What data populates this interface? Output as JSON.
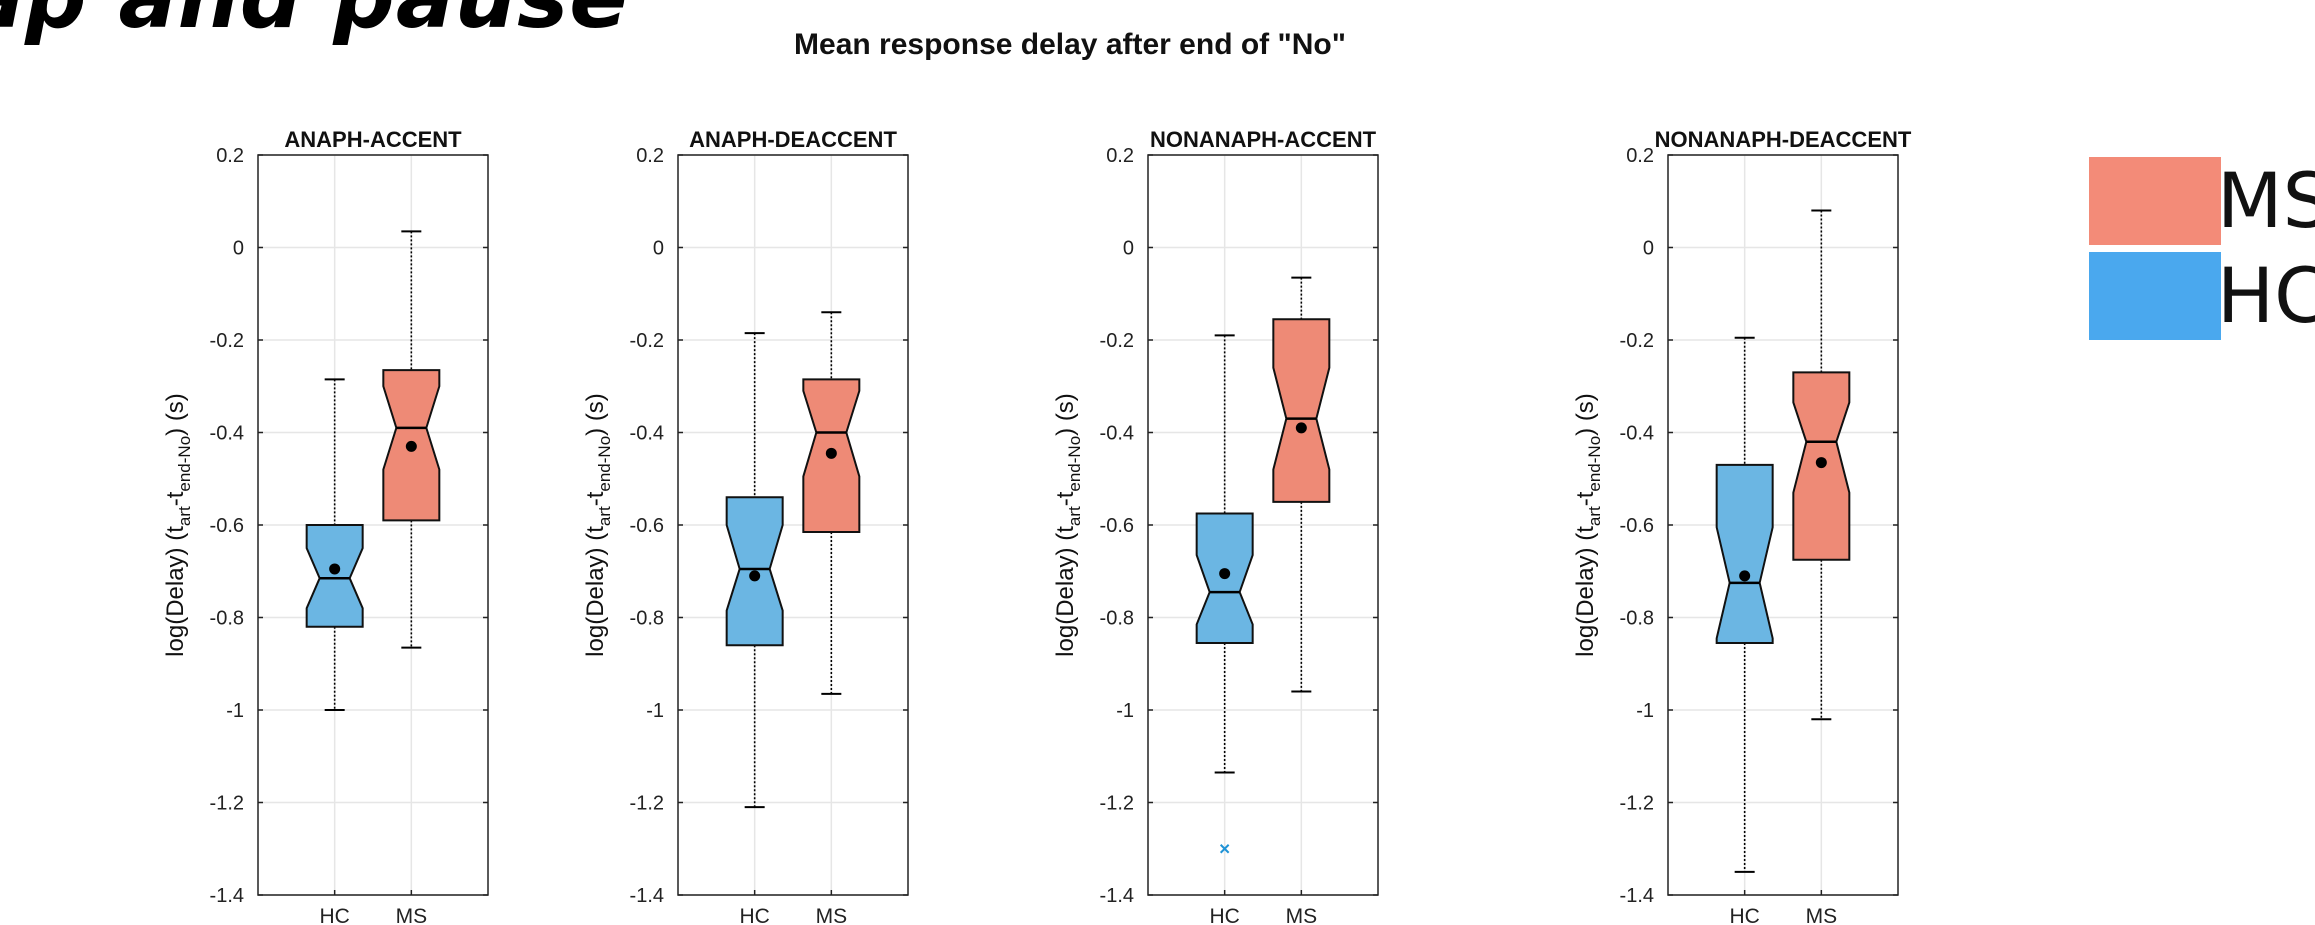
{
  "headline_fragment": "ap and pause",
  "suptitle": "Mean response delay after end of \"No\"",
  "colors": {
    "HC": "#6bb6e3",
    "MS": "#ee8a76",
    "outlier": "#1f93d6",
    "HC_legend": "#4aa8ee",
    "MS_legend": "#f38b78"
  },
  "legend": [
    {
      "label": "MS",
      "color_key": "MS_legend"
    },
    {
      "label": "HC",
      "color_key": "HC_legend"
    }
  ],
  "chart_data": [
    {
      "type": "box",
      "title": "ANAPH-ACCENT",
      "ylabel": "log(Delay) (t_art - t_end-No) (s)",
      "ylim": [
        -1.4,
        0.2
      ],
      "yticks": [
        "0.2",
        "0",
        "-0.2",
        "-0.4",
        "-0.6",
        "-0.8",
        "-1",
        "-1.2",
        "-1.4"
      ],
      "categories": [
        "HC",
        "MS"
      ],
      "grid": true,
      "boxes": [
        {
          "group": "HC",
          "whisker_low": -1.0,
          "q1": -0.82,
          "median": -0.715,
          "q3": -0.6,
          "whisker_high": -0.285,
          "mean": -0.695,
          "notch_low": -0.78,
          "notch_high": -0.65,
          "outliers": []
        },
        {
          "group": "MS",
          "whisker_low": -0.865,
          "q1": -0.59,
          "median": -0.39,
          "q3": -0.265,
          "whisker_high": 0.035,
          "mean": -0.43,
          "notch_low": -0.48,
          "notch_high": -0.3,
          "outliers": []
        }
      ]
    },
    {
      "type": "box",
      "title": "ANAPH-DEACCENT",
      "ylabel": "log(Delay) (t_art - t_end-No) (s)",
      "ylim": [
        -1.4,
        0.2
      ],
      "yticks": [
        "0.2",
        "0",
        "-0.2",
        "-0.4",
        "-0.6",
        "-0.8",
        "-1",
        "-1.2",
        "-1.4"
      ],
      "categories": [
        "HC",
        "MS"
      ],
      "grid": true,
      "boxes": [
        {
          "group": "HC",
          "whisker_low": -1.21,
          "q1": -0.86,
          "median": -0.695,
          "q3": -0.54,
          "whisker_high": -0.185,
          "mean": -0.71,
          "notch_low": -0.785,
          "notch_high": -0.6,
          "outliers": []
        },
        {
          "group": "MS",
          "whisker_low": -0.965,
          "q1": -0.615,
          "median": -0.4,
          "q3": -0.285,
          "whisker_high": -0.14,
          "mean": -0.445,
          "notch_low": -0.495,
          "notch_high": -0.31,
          "outliers": []
        }
      ]
    },
    {
      "type": "box",
      "title": "NONANAPH-ACCENT",
      "ylabel": "log(Delay) (t_art - t_end-No) (s)",
      "ylim": [
        -1.4,
        0.2
      ],
      "yticks": [
        "0.2",
        "0",
        "-0.2",
        "-0.4",
        "-0.6",
        "-0.8",
        "-1",
        "-1.2",
        "-1.4"
      ],
      "categories": [
        "HC",
        "MS"
      ],
      "grid": true,
      "boxes": [
        {
          "group": "HC",
          "whisker_low": -1.135,
          "q1": -0.855,
          "median": -0.745,
          "q3": -0.575,
          "whisker_high": -0.19,
          "mean": -0.705,
          "notch_low": -0.815,
          "notch_high": -0.665,
          "outliers": [
            -1.3
          ]
        },
        {
          "group": "MS",
          "whisker_low": -0.96,
          "q1": -0.55,
          "median": -0.37,
          "q3": -0.155,
          "whisker_high": -0.065,
          "mean": -0.39,
          "notch_low": -0.48,
          "notch_high": -0.26,
          "outliers": []
        }
      ]
    },
    {
      "type": "box",
      "title": "NONANAPH-DEACCENT",
      "ylabel": "log(Delay) (t_art - t_end-No) (s)",
      "ylim": [
        -1.4,
        0.2
      ],
      "yticks": [
        "0.2",
        "0",
        "-0.2",
        "-0.4",
        "-0.6",
        "-0.8",
        "-1",
        "-1.2",
        "-1.4"
      ],
      "categories": [
        "HC",
        "MS"
      ],
      "grid": true,
      "boxes": [
        {
          "group": "HC",
          "whisker_low": -1.35,
          "q1": -0.855,
          "median": -0.725,
          "q3": -0.47,
          "whisker_high": -0.195,
          "mean": -0.71,
          "notch_low": -0.845,
          "notch_high": -0.605,
          "outliers": []
        },
        {
          "group": "MS",
          "whisker_low": -1.02,
          "q1": -0.675,
          "median": -0.42,
          "q3": -0.27,
          "whisker_high": 0.08,
          "mean": -0.465,
          "notch_low": -0.53,
          "notch_high": -0.335,
          "outliers": []
        }
      ]
    }
  ]
}
